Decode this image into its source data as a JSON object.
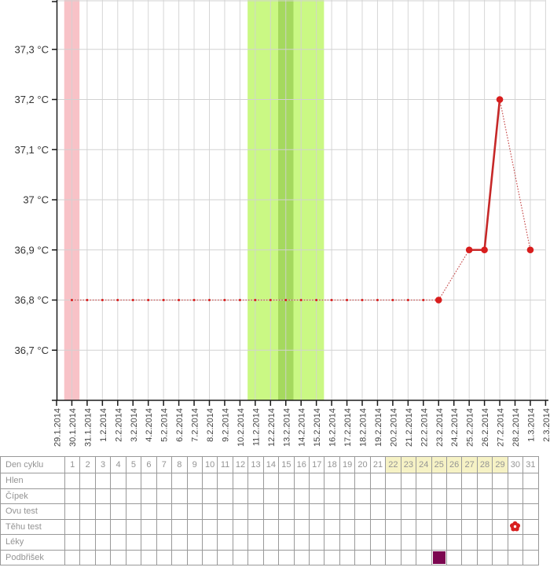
{
  "chart_data": {
    "type": "line",
    "title": "",
    "ylabel": "",
    "xlabel": "",
    "ylim": [
      36.6,
      37.4
    ],
    "grid": true,
    "x_labels": [
      "29.1.2014",
      "30.1.2014",
      "31.1.2014",
      "1.2.2014",
      "2.2.2014",
      "3.2.2014",
      "4.2.2014",
      "5.2.2014",
      "6.2.2014",
      "7.2.2014",
      "8.2.2014",
      "9.2.2014",
      "10.2.2014",
      "11.2.2014",
      "12.2.2014",
      "13.2.2014",
      "14.2.2014",
      "15.2.2014",
      "16.2.2014",
      "17.2.2014",
      "18.2.2014",
      "19.2.2014",
      "20.2.2014",
      "21.2.2014",
      "22.2.2014",
      "23.2.2014",
      "24.2.2014",
      "25.2.2014",
      "26.2.2014",
      "27.2.2014",
      "28.2.2014",
      "1.3.2014",
      "2.3.2014"
    ],
    "y_ticks": [
      36.7,
      36.8,
      36.9,
      37,
      37.1,
      37.2,
      37.3
    ],
    "y_tick_labels": [
      "36,7 °C",
      "36,8 °C",
      "36,9 °C",
      "37 °C",
      "37,1 °C",
      "37,2 °C",
      "37,3 °C"
    ],
    "bands": [
      {
        "name": "menstruation-band",
        "color": "#f8c2c7",
        "from": "30.1.2014",
        "to": "30.1.2014"
      },
      {
        "name": "fertile-window-band",
        "color": "#caf884",
        "from": "11.2.2014",
        "to": "15.2.2014"
      },
      {
        "name": "ovulation-day-band",
        "color": "#a5d95e",
        "from": "13.2.2014",
        "to": "13.2.2014"
      }
    ],
    "series": [
      {
        "name": "basal-temperature",
        "solid_color": "#c62828",
        "dotted_color": "#c75050",
        "marker_color": "#d81e1e",
        "points": [
          {
            "date": "30.1.2014",
            "temp": 36.8,
            "measured": false
          },
          {
            "date": "31.1.2014",
            "temp": 36.8,
            "measured": false
          },
          {
            "date": "1.2.2014",
            "temp": 36.8,
            "measured": false
          },
          {
            "date": "2.2.2014",
            "temp": 36.8,
            "measured": false
          },
          {
            "date": "3.2.2014",
            "temp": 36.8,
            "measured": false
          },
          {
            "date": "4.2.2014",
            "temp": 36.8,
            "measured": false
          },
          {
            "date": "5.2.2014",
            "temp": 36.8,
            "measured": false
          },
          {
            "date": "6.2.2014",
            "temp": 36.8,
            "measured": false
          },
          {
            "date": "7.2.2014",
            "temp": 36.8,
            "measured": false
          },
          {
            "date": "8.2.2014",
            "temp": 36.8,
            "measured": false
          },
          {
            "date": "9.2.2014",
            "temp": 36.8,
            "measured": false
          },
          {
            "date": "10.2.2014",
            "temp": 36.8,
            "measured": false
          },
          {
            "date": "11.2.2014",
            "temp": 36.8,
            "measured": false
          },
          {
            "date": "12.2.2014",
            "temp": 36.8,
            "measured": false
          },
          {
            "date": "13.2.2014",
            "temp": 36.8,
            "measured": false
          },
          {
            "date": "14.2.2014",
            "temp": 36.8,
            "measured": false
          },
          {
            "date": "15.2.2014",
            "temp": 36.8,
            "measured": false
          },
          {
            "date": "16.2.2014",
            "temp": 36.8,
            "measured": false
          },
          {
            "date": "17.2.2014",
            "temp": 36.8,
            "measured": false
          },
          {
            "date": "18.2.2014",
            "temp": 36.8,
            "measured": false
          },
          {
            "date": "19.2.2014",
            "temp": 36.8,
            "measured": false
          },
          {
            "date": "20.2.2014",
            "temp": 36.8,
            "measured": false
          },
          {
            "date": "21.2.2014",
            "temp": 36.8,
            "measured": false
          },
          {
            "date": "22.2.2014",
            "temp": 36.8,
            "measured": false
          },
          {
            "date": "23.2.2014",
            "temp": 36.8,
            "measured": true
          },
          {
            "date": "25.2.2014",
            "temp": 36.9,
            "measured": true
          },
          {
            "date": "26.2.2014",
            "temp": 36.9,
            "measured": true
          },
          {
            "date": "27.2.2014",
            "temp": 37.2,
            "measured": true
          },
          {
            "date": "1.3.2014",
            "temp": 36.9,
            "measured": true
          }
        ]
      }
    ]
  },
  "table": {
    "row_labels": [
      "Den cyklu",
      "Hlen",
      "Čípek",
      "Ovu test",
      "Těhu test",
      "Léky",
      "Podbřišek"
    ],
    "days": [
      1,
      2,
      3,
      4,
      5,
      6,
      7,
      8,
      9,
      10,
      11,
      12,
      13,
      14,
      15,
      16,
      17,
      18,
      19,
      20,
      21,
      22,
      23,
      24,
      25,
      26,
      27,
      28,
      29,
      30,
      31
    ],
    "highlighted_days": [
      22,
      23,
      24,
      25,
      26,
      27,
      28,
      29
    ],
    "highlight_color": "#f6f2c5",
    "marks": [
      {
        "row": "Těhu test",
        "day": 30,
        "type": "flower",
        "color": "#d81e1e"
      },
      {
        "row": "Podbřišek",
        "day": 25,
        "type": "square",
        "color": "#7c0750"
      }
    ]
  },
  "colors": {
    "gridline": "#d2d2d2",
    "axis": "#1a1a1a",
    "table_border": "#999999",
    "table_text": "#949494"
  }
}
